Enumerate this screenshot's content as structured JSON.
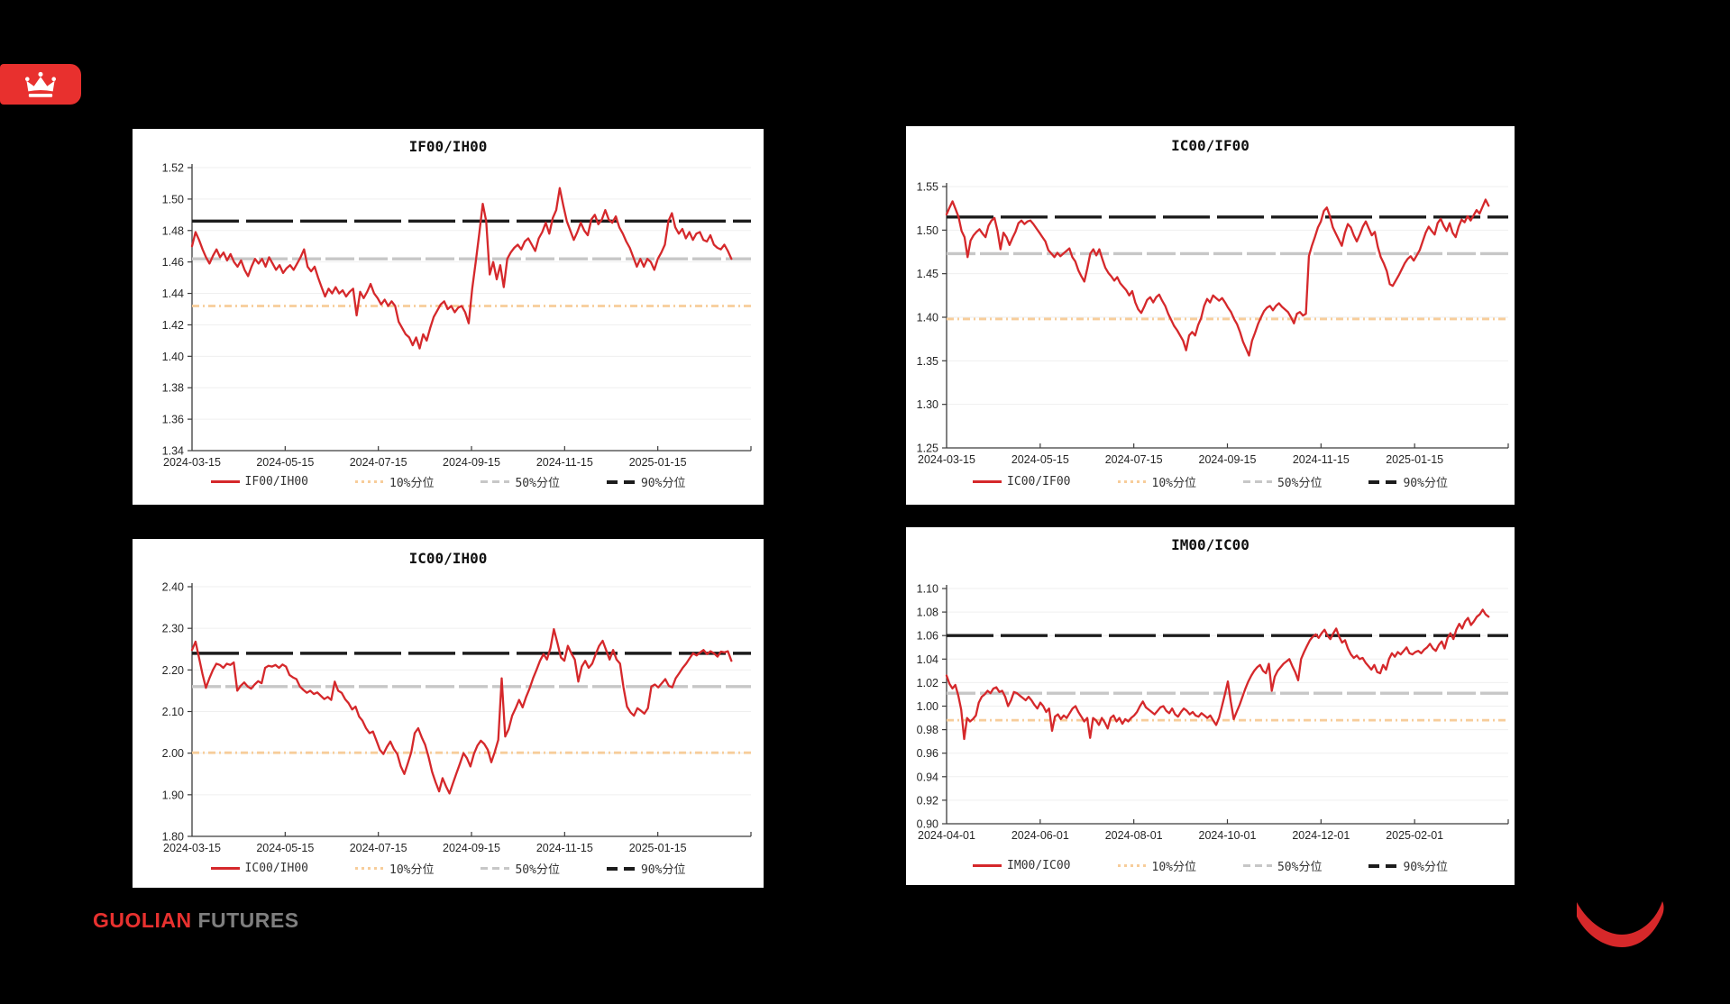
{
  "page": {
    "background": "#000000"
  },
  "branding": {
    "badge_color": "#E8302E",
    "footer_primary": "GUOLIAN",
    "footer_secondary": "FUTURES",
    "footer_primary_color": "#E8312F",
    "footer_secondary_color": "#7F7F7F",
    "swoosh_color": "#D6282A"
  },
  "palette": {
    "series_red": "#D5282B",
    "p10_orange": "#F7CD9A",
    "p50_gray": "#C7C7C7",
    "p90_black": "#1C1C1C",
    "grid": "#EFEFEF",
    "axis": "#3C3C3C",
    "tick_label": "#262626"
  },
  "legend_labels": {
    "p10": "10%分位",
    "p50": "50%分位",
    "p90": "90%分位"
  },
  "chart_data": [
    {
      "type": "line",
      "title": "IF00/IH00",
      "series_name": "IF00/IH00",
      "ylim": [
        1.34,
        1.52
      ],
      "ytick_step": 0.02,
      "y_decimals": 2,
      "grid": true,
      "legend_position": "bottom",
      "xticks": [
        "2024-03-15",
        "2024-05-15",
        "2024-07-15",
        "2024-09-15",
        "2024-11-15",
        "2025-01-15"
      ],
      "percentiles": {
        "p10": 1.432,
        "p50": 1.462,
        "p90": 1.486
      },
      "values": [
        1.47,
        1.479,
        1.474,
        1.468,
        1.463,
        1.459,
        1.464,
        1.468,
        1.463,
        1.466,
        1.461,
        1.465,
        1.46,
        1.457,
        1.461,
        1.455,
        1.451,
        1.457,
        1.462,
        1.459,
        1.462,
        1.457,
        1.463,
        1.459,
        1.455,
        1.458,
        1.453,
        1.456,
        1.458,
        1.455,
        1.459,
        1.463,
        1.468,
        1.457,
        1.454,
        1.457,
        1.45,
        1.444,
        1.438,
        1.443,
        1.44,
        1.444,
        1.44,
        1.442,
        1.438,
        1.441,
        1.443,
        1.426,
        1.441,
        1.437,
        1.441,
        1.446,
        1.44,
        1.437,
        1.433,
        1.436,
        1.432,
        1.435,
        1.432,
        1.422,
        1.418,
        1.414,
        1.412,
        1.407,
        1.412,
        1.405,
        1.414,
        1.41,
        1.418,
        1.425,
        1.429,
        1.433,
        1.435,
        1.43,
        1.432,
        1.428,
        1.431,
        1.432,
        1.428,
        1.421,
        1.443,
        1.46,
        1.478,
        1.497,
        1.486,
        1.452,
        1.46,
        1.449,
        1.458,
        1.444,
        1.462,
        1.466,
        1.469,
        1.471,
        1.468,
        1.473,
        1.475,
        1.471,
        1.467,
        1.475,
        1.479,
        1.485,
        1.478,
        1.488,
        1.493,
        1.507,
        1.496,
        1.486,
        1.48,
        1.474,
        1.479,
        1.485,
        1.48,
        1.477,
        1.487,
        1.49,
        1.484,
        1.487,
        1.493,
        1.487,
        1.485,
        1.489,
        1.482,
        1.478,
        1.473,
        1.469,
        1.463,
        1.457,
        1.462,
        1.457,
        1.462,
        1.46,
        1.455,
        1.462,
        1.466,
        1.471,
        1.486,
        1.491,
        1.482,
        1.478,
        1.481,
        1.475,
        1.479,
        1.474,
        1.478,
        1.479,
        1.474,
        1.473,
        1.477,
        1.471,
        1.469,
        1.468,
        1.471,
        1.467,
        1.462
      ]
    },
    {
      "type": "line",
      "title": "IC00/IF00",
      "series_name": "IC00/IF00",
      "ylim": [
        1.25,
        1.55
      ],
      "ytick_step": 0.05,
      "y_decimals": 2,
      "grid": true,
      "legend_position": "bottom",
      "xticks": [
        "2024-03-15",
        "2024-05-15",
        "2024-07-15",
        "2024-09-15",
        "2024-11-15",
        "2025-01-15"
      ],
      "percentiles": {
        "p10": 1.398,
        "p50": 1.473,
        "p90": 1.515
      },
      "values": [
        1.518,
        1.526,
        1.533,
        1.524,
        1.515,
        1.499,
        1.492,
        1.469,
        1.488,
        1.494,
        1.498,
        1.501,
        1.496,
        1.492,
        1.505,
        1.511,
        1.514,
        1.499,
        1.478,
        1.497,
        1.492,
        1.483,
        1.491,
        1.498,
        1.508,
        1.511,
        1.507,
        1.51,
        1.511,
        1.507,
        1.502,
        1.497,
        1.492,
        1.487,
        1.477,
        1.473,
        1.469,
        1.474,
        1.47,
        1.473,
        1.476,
        1.479,
        1.469,
        1.464,
        1.454,
        1.447,
        1.441,
        1.456,
        1.473,
        1.478,
        1.471,
        1.478,
        1.467,
        1.457,
        1.451,
        1.447,
        1.442,
        1.446,
        1.439,
        1.435,
        1.431,
        1.425,
        1.43,
        1.417,
        1.409,
        1.405,
        1.412,
        1.42,
        1.423,
        1.417,
        1.423,
        1.426,
        1.419,
        1.413,
        1.404,
        1.397,
        1.39,
        1.385,
        1.379,
        1.373,
        1.362,
        1.379,
        1.383,
        1.379,
        1.391,
        1.399,
        1.413,
        1.421,
        1.417,
        1.425,
        1.422,
        1.419,
        1.422,
        1.417,
        1.411,
        1.406,
        1.398,
        1.392,
        1.383,
        1.372,
        1.364,
        1.356,
        1.373,
        1.382,
        1.392,
        1.4,
        1.407,
        1.411,
        1.413,
        1.408,
        1.413,
        1.416,
        1.412,
        1.409,
        1.406,
        1.4,
        1.393,
        1.404,
        1.406,
        1.402,
        1.404,
        1.47,
        1.482,
        1.492,
        1.503,
        1.51,
        1.522,
        1.526,
        1.516,
        1.503,
        1.496,
        1.489,
        1.482,
        1.497,
        1.507,
        1.503,
        1.494,
        1.487,
        1.495,
        1.504,
        1.51,
        1.502,
        1.494,
        1.498,
        1.481,
        1.469,
        1.462,
        1.453,
        1.438,
        1.436,
        1.442,
        1.448,
        1.455,
        1.462,
        1.467,
        1.47,
        1.465,
        1.471,
        1.477,
        1.487,
        1.497,
        1.504,
        1.499,
        1.495,
        1.508,
        1.513,
        1.505,
        1.499,
        1.508,
        1.497,
        1.492,
        1.504,
        1.512,
        1.509,
        1.516,
        1.511,
        1.517,
        1.523,
        1.519,
        1.527,
        1.535,
        1.528
      ]
    },
    {
      "type": "line",
      "title": "IC00/IH00",
      "series_name": "IC00/IH00",
      "ylim": [
        1.8,
        2.4
      ],
      "ytick_step": 0.1,
      "y_decimals": 2,
      "grid": true,
      "legend_position": "bottom",
      "xticks": [
        "2024-03-15",
        "2024-05-15",
        "2024-07-15",
        "2024-09-15",
        "2024-11-15",
        "2025-01-15"
      ],
      "percentiles": {
        "p10": 2.001,
        "p50": 2.16,
        "p90": 2.24
      },
      "values": [
        2.248,
        2.268,
        2.23,
        2.19,
        2.157,
        2.18,
        2.2,
        2.215,
        2.212,
        2.205,
        2.215,
        2.212,
        2.218,
        2.15,
        2.162,
        2.17,
        2.16,
        2.155,
        2.165,
        2.173,
        2.168,
        2.205,
        2.21,
        2.208,
        2.212,
        2.205,
        2.213,
        2.208,
        2.188,
        2.182,
        2.178,
        2.16,
        2.152,
        2.145,
        2.15,
        2.142,
        2.146,
        2.138,
        2.13,
        2.135,
        2.128,
        2.172,
        2.15,
        2.145,
        2.13,
        2.12,
        2.105,
        2.112,
        2.088,
        2.078,
        2.06,
        2.048,
        2.052,
        2.03,
        2.008,
        1.998,
        2.015,
        2.028,
        2.01,
        1.998,
        1.968,
        1.95,
        1.975,
        2.002,
        2.048,
        2.06,
        2.038,
        2.02,
        1.99,
        1.955,
        1.93,
        1.908,
        1.94,
        1.92,
        1.903,
        1.928,
        1.952,
        1.975,
        2.0,
        1.988,
        1.968,
        1.998,
        2.018,
        2.03,
        2.022,
        2.008,
        1.978,
        2.003,
        2.032,
        2.18,
        2.04,
        2.058,
        2.09,
        2.108,
        2.128,
        2.11,
        2.135,
        2.155,
        2.18,
        2.2,
        2.222,
        2.238,
        2.225,
        2.253,
        2.298,
        2.265,
        2.23,
        2.222,
        2.258,
        2.24,
        2.225,
        2.172,
        2.208,
        2.222,
        2.205,
        2.215,
        2.238,
        2.258,
        2.27,
        2.248,
        2.225,
        2.248,
        2.225,
        2.215,
        2.158,
        2.112,
        2.098,
        2.09,
        2.108,
        2.102,
        2.095,
        2.108,
        2.16,
        2.165,
        2.158,
        2.168,
        2.178,
        2.162,
        2.158,
        2.18,
        2.192,
        2.205,
        2.215,
        2.228,
        2.24,
        2.235,
        2.242,
        2.248,
        2.238,
        2.245,
        2.24,
        2.232,
        2.244,
        2.242,
        2.245,
        2.222
      ]
    },
    {
      "type": "line",
      "title": "IM00/IC00",
      "series_name": "IM00/IC00",
      "ylim": [
        0.9,
        1.1
      ],
      "ytick_step": 0.02,
      "y_decimals": 2,
      "grid": true,
      "legend_position": "bottom",
      "xticks": [
        "2024-04-01",
        "2024-06-01",
        "2024-08-01",
        "2024-10-01",
        "2024-12-01",
        "2025-02-01"
      ],
      "percentiles": {
        "p10": 0.988,
        "p50": 1.011,
        "p90": 1.06
      },
      "values": [
        1.026,
        1.019,
        1.015,
        1.018,
        1.009,
        0.997,
        0.972,
        0.99,
        0.987,
        0.989,
        0.992,
        1.003,
        1.008,
        1.01,
        1.013,
        1.011,
        1.015,
        1.016,
        1.012,
        1.013,
        1.008,
        1.0,
        1.005,
        1.012,
        1.011,
        1.009,
        1.007,
        1.005,
        1.008,
        1.005,
        1.001,
        0.998,
        1.003,
        1.0,
        0.995,
        0.998,
        0.979,
        0.991,
        0.993,
        0.989,
        0.992,
        0.99,
        0.994,
        0.998,
        1.0,
        0.995,
        0.991,
        0.987,
        0.99,
        0.973,
        0.99,
        0.988,
        0.984,
        0.99,
        0.986,
        0.981,
        0.99,
        0.992,
        0.987,
        0.99,
        0.985,
        0.989,
        0.987,
        0.99,
        0.992,
        0.995,
        1.0,
        1.004,
        0.999,
        0.997,
        0.995,
        0.993,
        0.996,
        0.999,
        1.0,
        0.996,
        0.994,
        0.998,
        0.993,
        0.991,
        0.995,
        0.998,
        0.996,
        0.993,
        0.995,
        0.992,
        0.991,
        0.994,
        0.992,
        0.99,
        0.992,
        0.988,
        0.984,
        0.99,
        1.0,
        1.01,
        1.021,
        1.004,
        0.989,
        0.995,
        1.001,
        1.008,
        1.015,
        1.021,
        1.026,
        1.03,
        1.033,
        1.035,
        1.03,
        1.028,
        1.036,
        1.013,
        1.025,
        1.03,
        1.033,
        1.036,
        1.038,
        1.04,
        1.034,
        1.029,
        1.022,
        1.04,
        1.046,
        1.051,
        1.056,
        1.059,
        1.061,
        1.058,
        1.062,
        1.065,
        1.06,
        1.057,
        1.062,
        1.066,
        1.059,
        1.054,
        1.056,
        1.049,
        1.044,
        1.041,
        1.043,
        1.04,
        1.041,
        1.037,
        1.034,
        1.031,
        1.035,
        1.029,
        1.028,
        1.035,
        1.031,
        1.04,
        1.045,
        1.042,
        1.046,
        1.044,
        1.047,
        1.05,
        1.045,
        1.044,
        1.046,
        1.047,
        1.045,
        1.048,
        1.05,
        1.053,
        1.049,
        1.047,
        1.052,
        1.055,
        1.049,
        1.058,
        1.062,
        1.057,
        1.065,
        1.07,
        1.066,
        1.072,
        1.075,
        1.069,
        1.072,
        1.076,
        1.078,
        1.082,
        1.078,
        1.076
      ]
    }
  ]
}
